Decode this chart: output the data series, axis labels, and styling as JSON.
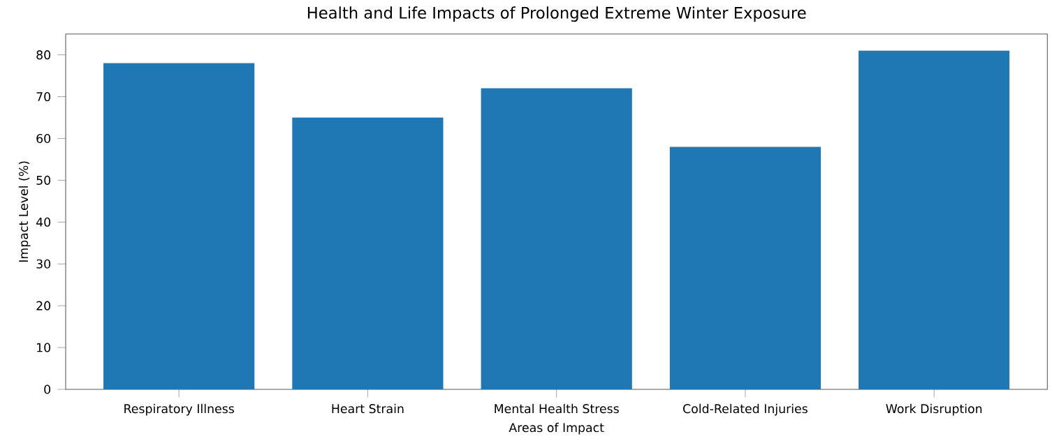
{
  "chart_data": {
    "type": "bar",
    "title": "Health and Life Impacts of Prolonged Extreme Winter Exposure",
    "xlabel": "Areas of Impact",
    "ylabel": "Impact Level (%)",
    "categories": [
      "Respiratory Illness",
      "Heart Strain",
      "Mental Health Stress",
      "Cold-Related Injuries",
      "Work Disruption"
    ],
    "values": [
      78,
      65,
      72,
      58,
      81
    ],
    "color": "#1f77b4",
    "ylim": [
      0,
      85
    ],
    "yticks": [
      0,
      10,
      20,
      30,
      40,
      50,
      60,
      70,
      80
    ],
    "grid": false
  }
}
